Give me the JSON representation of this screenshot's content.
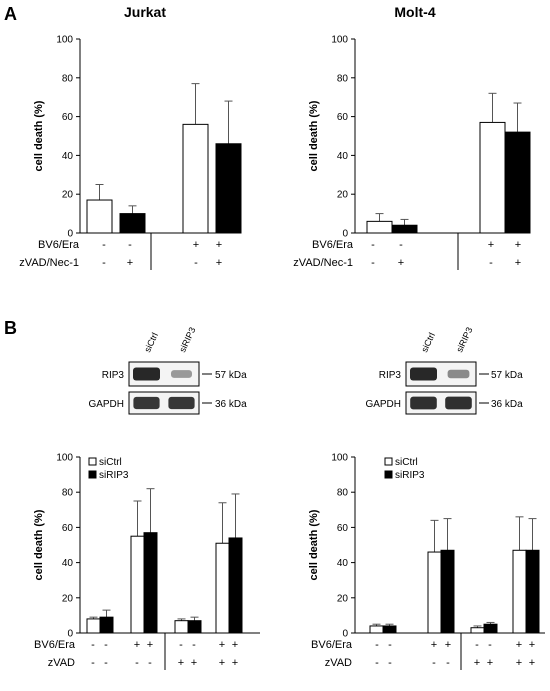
{
  "panel_labels": [
    "A",
    "B"
  ],
  "colors": {
    "ctrl": "#ffffff",
    "treated": "#000000",
    "axis": "#000000"
  },
  "chart_data": [
    {
      "id": "jurkat-a",
      "type": "bar",
      "title": "Jurkat",
      "ylabel": "cell death (%)",
      "ylim": [
        0,
        100
      ],
      "yticks": [
        0,
        20,
        40,
        60,
        80,
        100
      ],
      "series": [
        {
          "name": "",
          "color": "#ffffff",
          "values": [
            17,
            56
          ],
          "errors": [
            8,
            21
          ]
        },
        {
          "name": "",
          "color": "#000000",
          "values": [
            10,
            46
          ],
          "errors": [
            4,
            22
          ]
        }
      ],
      "conditions": [
        {
          "label": "BV6/Era",
          "values": [
            "-",
            "-",
            "+",
            "+"
          ]
        },
        {
          "label": "zVAD/Nec-1",
          "values": [
            "-",
            "+",
            "-",
            "+"
          ]
        }
      ]
    },
    {
      "id": "molt4-a",
      "type": "bar",
      "title": "Molt-4",
      "ylabel": "cell death (%)",
      "ylim": [
        0,
        100
      ],
      "yticks": [
        0,
        20,
        40,
        60,
        80,
        100
      ],
      "series": [
        {
          "name": "",
          "color": "#ffffff",
          "values": [
            6,
            57
          ],
          "errors": [
            4,
            15
          ]
        },
        {
          "name": "",
          "color": "#000000",
          "values": [
            4,
            52
          ],
          "errors": [
            3,
            15
          ]
        }
      ],
      "conditions": [
        {
          "label": "BV6/Era",
          "values": [
            "-",
            "-",
            "+",
            "+"
          ]
        },
        {
          "label": "zVAD/Nec-1",
          "values": [
            "-",
            "+",
            "-",
            "+"
          ]
        }
      ]
    },
    {
      "id": "jurkat-b",
      "type": "bar",
      "title": "",
      "ylabel": "cell death (%)",
      "ylim": [
        0,
        100
      ],
      "yticks": [
        0,
        20,
        40,
        60,
        80,
        100
      ],
      "legend_position": "top-left",
      "series": [
        {
          "name": "siCtrl",
          "color": "#ffffff",
          "values": [
            8,
            55,
            7,
            51
          ],
          "errors": [
            1,
            20,
            1,
            23
          ]
        },
        {
          "name": "siRIP3",
          "color": "#000000",
          "values": [
            9,
            57,
            7,
            54
          ],
          "errors": [
            4,
            25,
            2,
            25
          ]
        }
      ],
      "conditions": [
        {
          "label": "BV6/Era",
          "values": [
            "-",
            "-",
            "+",
            "+",
            "-",
            "-",
            "+",
            "+"
          ]
        },
        {
          "label": "zVAD",
          "values": [
            "-",
            "-",
            "-",
            "-",
            "+",
            "+",
            "+",
            "+"
          ]
        }
      ]
    },
    {
      "id": "molt4-b",
      "type": "bar",
      "title": "",
      "ylabel": "cell death (%)",
      "ylim": [
        0,
        100
      ],
      "yticks": [
        0,
        20,
        40,
        60,
        80,
        100
      ],
      "legend_position": "top-left",
      "series": [
        {
          "name": "siCtrl",
          "color": "#ffffff",
          "values": [
            4,
            46,
            3,
            47
          ],
          "errors": [
            1,
            18,
            1,
            19
          ]
        },
        {
          "name": "siRIP3",
          "color": "#000000",
          "values": [
            4,
            47,
            5,
            47
          ],
          "errors": [
            1,
            18,
            1,
            18
          ]
        }
      ],
      "conditions": [
        {
          "label": "BV6/Era",
          "values": [
            "-",
            "-",
            "+",
            "+",
            "-",
            "-",
            "+",
            "+"
          ]
        },
        {
          "label": "zVAD",
          "values": [
            "-",
            "-",
            "-",
            "-",
            "+",
            "+",
            "+",
            "+"
          ]
        }
      ]
    }
  ],
  "blots": [
    {
      "id": "jurkat-blot",
      "lanes": [
        "siCtrl",
        "siRIP3"
      ],
      "rows": [
        {
          "protein": "RIP3",
          "size": "57 kDa",
          "intensity": [
            1.0,
            0.25
          ]
        },
        {
          "protein": "GAPDH",
          "size": "36 kDa",
          "intensity": [
            0.9,
            0.9
          ]
        }
      ]
    },
    {
      "id": "molt4-blot",
      "lanes": [
        "siCtrl",
        "siRIP3"
      ],
      "rows": [
        {
          "protein": "RIP3",
          "size": "57 kDa",
          "intensity": [
            1.0,
            0.35
          ]
        },
        {
          "protein": "GAPDH",
          "size": "36 kDa",
          "intensity": [
            0.95,
            0.95
          ]
        }
      ]
    }
  ]
}
